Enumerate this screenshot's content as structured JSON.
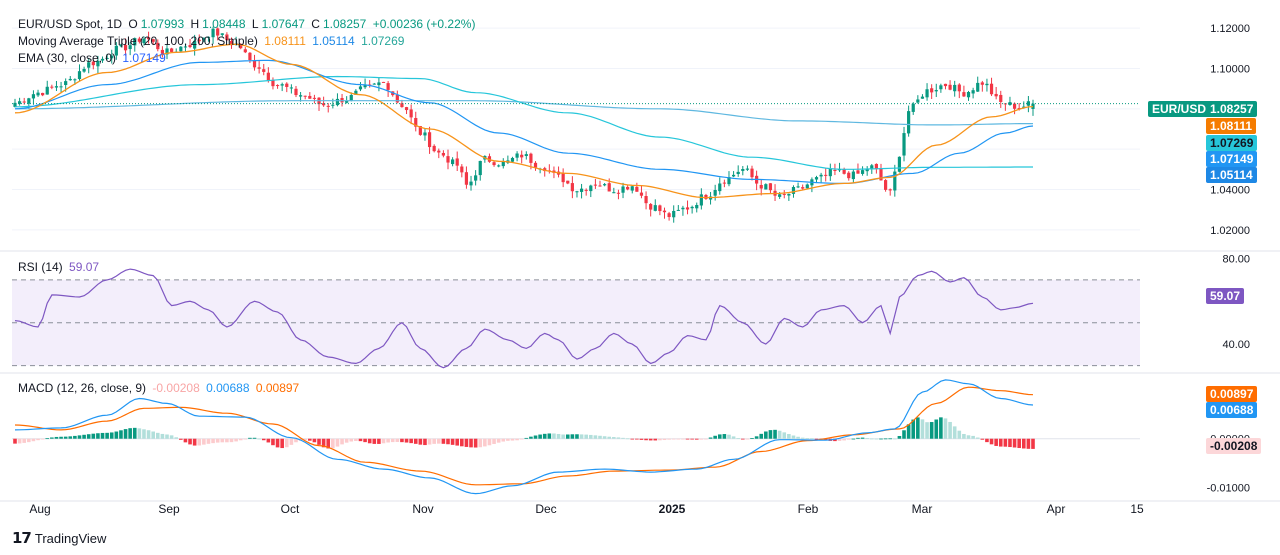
{
  "legend": {
    "symbol": "EUR/USD Spot, 1D",
    "open_label": "O",
    "open": "1.07993",
    "high_label": "H",
    "high": "1.08448",
    "low_label": "L",
    "low": "1.07647",
    "close_label": "C",
    "close": "1.08257",
    "change": "+0.00236 (+0.22%)",
    "ma_name": "Moving Average Triple (20, 100, 200, Simple)",
    "ma20": "1.08111",
    "ma100": "1.05114",
    "ma200": "1.07269",
    "ema_name": "EMA (30, close, 0)",
    "ema": "1.07149",
    "rsi_name": "RSI (14)",
    "rsi": "59.07",
    "macd_name": "MACD (12, 26, close, 9)",
    "macd_hist": "-0.00208",
    "macd_line": "0.00688",
    "macd_signal": "0.00897"
  },
  "tags": {
    "symbol_tag": "EUR/USD",
    "close_tag": "1.08257",
    "ma20_tag": "1.08111",
    "ma200_tag": "1.07269",
    "ema_tag": "1.07149",
    "ma100_tag": "1.05114",
    "rsi_tag": "59.07",
    "signal_tag": "0.00897",
    "macd_tag": "0.00688",
    "hist_tag": "-0.00208"
  },
  "brand": "TradingView",
  "colors": {
    "up": "#089981",
    "down": "#f23645",
    "ma20": "#f7931a",
    "ma100": "#26c6da",
    "ma200": "#5fb8e0",
    "ema": "#2962ff",
    "rsi": "#7e57c2",
    "macd": "#2196f3",
    "signal": "#ff6d00"
  },
  "chart_data": [
    {
      "type": "candlestick",
      "title": "EUR/USD Spot, 1D",
      "x_ticks": [
        "Aug",
        "Sep",
        "Oct",
        "Nov",
        "Dec",
        "2025",
        "Feb",
        "Mar",
        "Apr",
        "15"
      ],
      "y_ticks": [
        "1.02000",
        "1.04000",
        "1.06000",
        "1.08000",
        "1.10000",
        "1.12000"
      ],
      "ylim": [
        1.01,
        1.128
      ],
      "anchors_close": [
        [
          0,
          1.083
        ],
        [
          5,
          1.088
        ],
        [
          10,
          1.092
        ],
        [
          17,
          1.103
        ],
        [
          23,
          1.11
        ],
        [
          28,
          1.115
        ],
        [
          33,
          1.108
        ],
        [
          38,
          1.112
        ],
        [
          43,
          1.118
        ],
        [
          48,
          1.112
        ],
        [
          52,
          1.102
        ],
        [
          57,
          1.092
        ],
        [
          62,
          1.087
        ],
        [
          67,
          1.082
        ],
        [
          72,
          1.085
        ],
        [
          76,
          1.09
        ],
        [
          80,
          1.093
        ],
        [
          84,
          1.082
        ],
        [
          88,
          1.068
        ],
        [
          92,
          1.058
        ],
        [
          96,
          1.052
        ],
        [
          98,
          1.042
        ],
        [
          102,
          1.055
        ],
        [
          106,
          1.053
        ],
        [
          110,
          1.057
        ],
        [
          114,
          1.052
        ],
        [
          118,
          1.046
        ],
        [
          122,
          1.04
        ],
        [
          126,
          1.043
        ],
        [
          130,
          1.04
        ],
        [
          134,
          1.042
        ],
        [
          138,
          1.032
        ],
        [
          142,
          1.027
        ],
        [
          146,
          1.031
        ],
        [
          150,
          1.037
        ],
        [
          154,
          1.045
        ],
        [
          158,
          1.05
        ],
        [
          162,
          1.042
        ],
        [
          166,
          1.036
        ],
        [
          170,
          1.04
        ],
        [
          174,
          1.045
        ],
        [
          178,
          1.049
        ],
        [
          182,
          1.047
        ],
        [
          186,
          1.051
        ],
        [
          190,
          1.038
        ],
        [
          192,
          1.058
        ],
        [
          194,
          1.079
        ],
        [
          198,
          1.089
        ],
        [
          202,
          1.092
        ],
        [
          206,
          1.088
        ],
        [
          210,
          1.093
        ],
        [
          214,
          1.083
        ],
        [
          218,
          1.081
        ],
        [
          221,
          1.0826
        ]
      ],
      "last": {
        "open": 1.07993,
        "high": 1.08448,
        "low": 1.07647,
        "close": 1.08257
      },
      "ma20": {
        "name": "MA 20",
        "anchors": [
          [
            0,
            1.078
          ],
          [
            20,
            1.098
          ],
          [
            35,
            1.108
          ],
          [
            48,
            1.112
          ],
          [
            60,
            1.102
          ],
          [
            75,
            1.087
          ],
          [
            90,
            1.07
          ],
          [
            105,
            1.054
          ],
          [
            120,
            1.048
          ],
          [
            135,
            1.042
          ],
          [
            150,
            1.036
          ],
          [
            165,
            1.038
          ],
          [
            180,
            1.043
          ],
          [
            190,
            1.046
          ],
          [
            200,
            1.062
          ],
          [
            212,
            1.076
          ],
          [
            221,
            1.08111
          ]
        ]
      },
      "ma100": {
        "name": "MA 100",
        "anchors": [
          [
            0,
            1.081
          ],
          [
            40,
            1.092
          ],
          [
            70,
            1.096
          ],
          [
            88,
            1.095
          ],
          [
            100,
            1.088
          ],
          [
            120,
            1.078
          ],
          [
            140,
            1.066
          ],
          [
            160,
            1.056
          ],
          [
            180,
            1.05
          ],
          [
            200,
            1.051
          ],
          [
            221,
            1.05114
          ]
        ]
      },
      "ma200": {
        "name": "MA 200",
        "anchors": [
          [
            0,
            1.08
          ],
          [
            60,
            1.084
          ],
          [
            100,
            1.084
          ],
          [
            140,
            1.08
          ],
          [
            170,
            1.074
          ],
          [
            200,
            1.072
          ],
          [
            221,
            1.07269
          ]
        ]
      },
      "ema30": {
        "name": "EMA 30",
        "anchors": [
          [
            0,
            1.08
          ],
          [
            20,
            1.092
          ],
          [
            40,
            1.103
          ],
          [
            55,
            1.104
          ],
          [
            75,
            1.092
          ],
          [
            90,
            1.083
          ],
          [
            105,
            1.068
          ],
          [
            120,
            1.058
          ],
          [
            140,
            1.05
          ],
          [
            160,
            1.045
          ],
          [
            180,
            1.043
          ],
          [
            195,
            1.048
          ],
          [
            205,
            1.058
          ],
          [
            215,
            1.068
          ],
          [
            221,
            1.07149
          ]
        ]
      }
    },
    {
      "type": "line",
      "title": "RSI (14)",
      "y_ticks": [
        "40.00",
        "80.00"
      ],
      "ylim": [
        27,
        83
      ],
      "bands": [
        30,
        50,
        70
      ],
      "anchors": [
        [
          0,
          51
        ],
        [
          5,
          48
        ],
        [
          8,
          63
        ],
        [
          14,
          62
        ],
        [
          20,
          70
        ],
        [
          25,
          75
        ],
        [
          30,
          72
        ],
        [
          34,
          58
        ],
        [
          38,
          60
        ],
        [
          42,
          56
        ],
        [
          46,
          48
        ],
        [
          52,
          60
        ],
        [
          57,
          55
        ],
        [
          62,
          42
        ],
        [
          68,
          34
        ],
        [
          74,
          31
        ],
        [
          79,
          38
        ],
        [
          84,
          50
        ],
        [
          88,
          38
        ],
        [
          93,
          29
        ],
        [
          98,
          38
        ],
        [
          102,
          47
        ],
        [
          107,
          42
        ],
        [
          111,
          38
        ],
        [
          115,
          45
        ],
        [
          118,
          42
        ],
        [
          122,
          33
        ],
        [
          126,
          38
        ],
        [
          130,
          45
        ],
        [
          134,
          40
        ],
        [
          138,
          31
        ],
        [
          142,
          36
        ],
        [
          146,
          44
        ],
        [
          150,
          42
        ],
        [
          153,
          58
        ],
        [
          158,
          50
        ],
        [
          163,
          40
        ],
        [
          167,
          52
        ],
        [
          171,
          48
        ],
        [
          175,
          56
        ],
        [
          180,
          58
        ],
        [
          184,
          50
        ],
        [
          188,
          58
        ],
        [
          190,
          45
        ],
        [
          192,
          62
        ],
        [
          196,
          72
        ],
        [
          199,
          74
        ],
        [
          203,
          69
        ],
        [
          206,
          71
        ],
        [
          210,
          62
        ],
        [
          214,
          56
        ],
        [
          217,
          57
        ],
        [
          221,
          59.07
        ]
      ]
    },
    {
      "type": "line",
      "title": "MACD (12, 26, close, 9)",
      "y_ticks": [
        "0.00000",
        "-0.01000"
      ],
      "ylim": [
        -0.0125,
        0.0132
      ],
      "macd": {
        "name": "MACD",
        "anchors": [
          [
            0,
            0.0018
          ],
          [
            10,
            0.0022
          ],
          [
            20,
            0.0048
          ],
          [
            27,
            0.0082
          ],
          [
            33,
            0.0072
          ],
          [
            40,
            0.0046
          ],
          [
            50,
            0.0044
          ],
          [
            60,
            0.0002
          ],
          [
            70,
            -0.0042
          ],
          [
            80,
            -0.0062
          ],
          [
            90,
            -0.008
          ],
          [
            100,
            -0.0112
          ],
          [
            108,
            -0.0096
          ],
          [
            118,
            -0.0068
          ],
          [
            128,
            -0.0062
          ],
          [
            138,
            -0.0068
          ],
          [
            148,
            -0.0062
          ],
          [
            156,
            -0.0042
          ],
          [
            166,
            -0.0002
          ],
          [
            176,
            -0.0003
          ],
          [
            185,
            0.0012
          ],
          [
            191,
            0.002
          ],
          [
            197,
            0.0095
          ],
          [
            202,
            0.012
          ],
          [
            207,
            0.0112
          ],
          [
            214,
            0.0082
          ],
          [
            221,
            0.00688
          ]
        ]
      },
      "signal": {
        "name": "Signal",
        "anchors": [
          [
            0,
            0.0028
          ],
          [
            10,
            0.0018
          ],
          [
            20,
            0.0036
          ],
          [
            28,
            0.0062
          ],
          [
            36,
            0.0064
          ],
          [
            46,
            0.0052
          ],
          [
            56,
            0.003
          ],
          [
            66,
            -0.0014
          ],
          [
            76,
            -0.0048
          ],
          [
            88,
            -0.0066
          ],
          [
            100,
            -0.0094
          ],
          [
            110,
            -0.0092
          ],
          [
            120,
            -0.0076
          ],
          [
            130,
            -0.0066
          ],
          [
            142,
            -0.0064
          ],
          [
            152,
            -0.0058
          ],
          [
            162,
            -0.0026
          ],
          [
            172,
            -0.0004
          ],
          [
            182,
            0.0008
          ],
          [
            192,
            0.002
          ],
          [
            200,
            0.0072
          ],
          [
            207,
            0.0105
          ],
          [
            214,
            0.0098
          ],
          [
            221,
            0.00897
          ]
        ]
      },
      "histogram_last": -0.00208
    }
  ]
}
